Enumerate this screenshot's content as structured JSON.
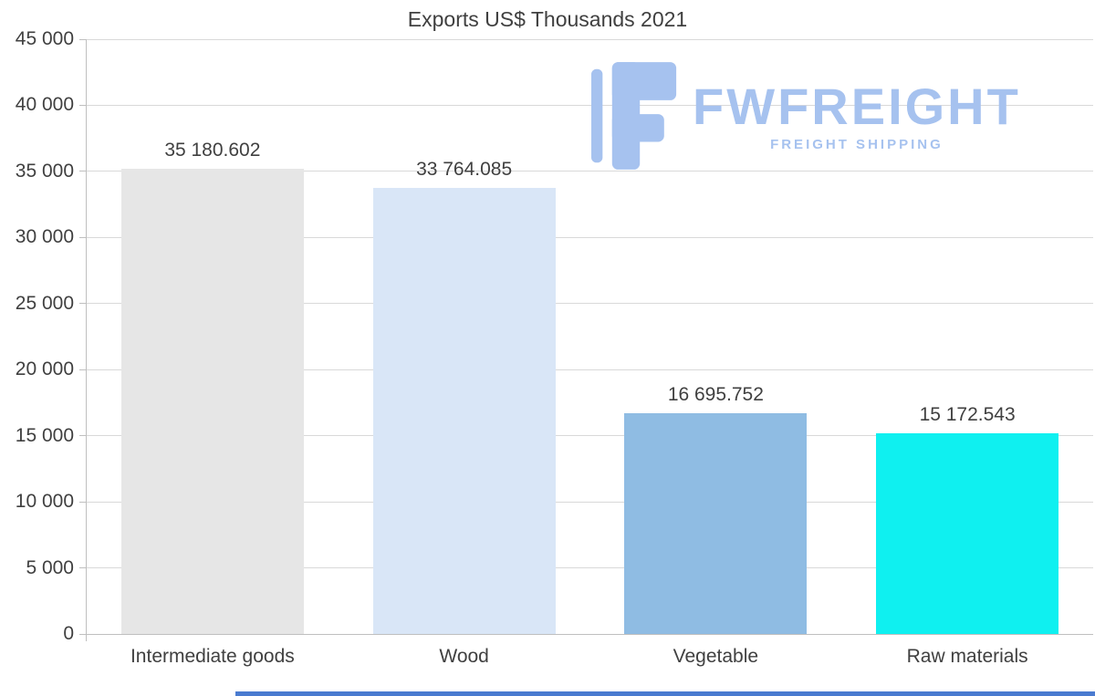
{
  "chart_data": {
    "type": "bar",
    "title": "Exports US$ Thousands 2021",
    "categories": [
      "Intermediate goods",
      "Wood",
      "Vegetable",
      "Raw materials"
    ],
    "values": [
      35180.602,
      33764.085,
      16695.752,
      15172.543
    ],
    "value_labels": [
      "35 180.602",
      "33 764.085",
      "16 695.752",
      "15 172.543"
    ],
    "bar_colors": [
      "#e6e6e6",
      "#d9e6f7",
      "#8fbce3",
      "#0ff0f0"
    ],
    "xlabel": "",
    "ylabel": "",
    "ylim": [
      0,
      45000
    ],
    "ytick_step": 5000,
    "ytick_labels": [
      "0",
      "5 000",
      "10 000",
      "15 000",
      "20 000",
      "25 000",
      "30 000",
      "35 000",
      "40 000",
      "45 000"
    ],
    "grid": true,
    "legend": "none"
  },
  "branding": {
    "name": "FWFREIGHT",
    "tagline": "FREIGHT SHIPPING",
    "color": "#a6c2ef",
    "accent_bar_color": "#4a7bd0"
  },
  "colors": {
    "grid": "#d9d9d9",
    "axis": "#bfbfbf",
    "text": "#404040",
    "background": "#ffffff"
  }
}
